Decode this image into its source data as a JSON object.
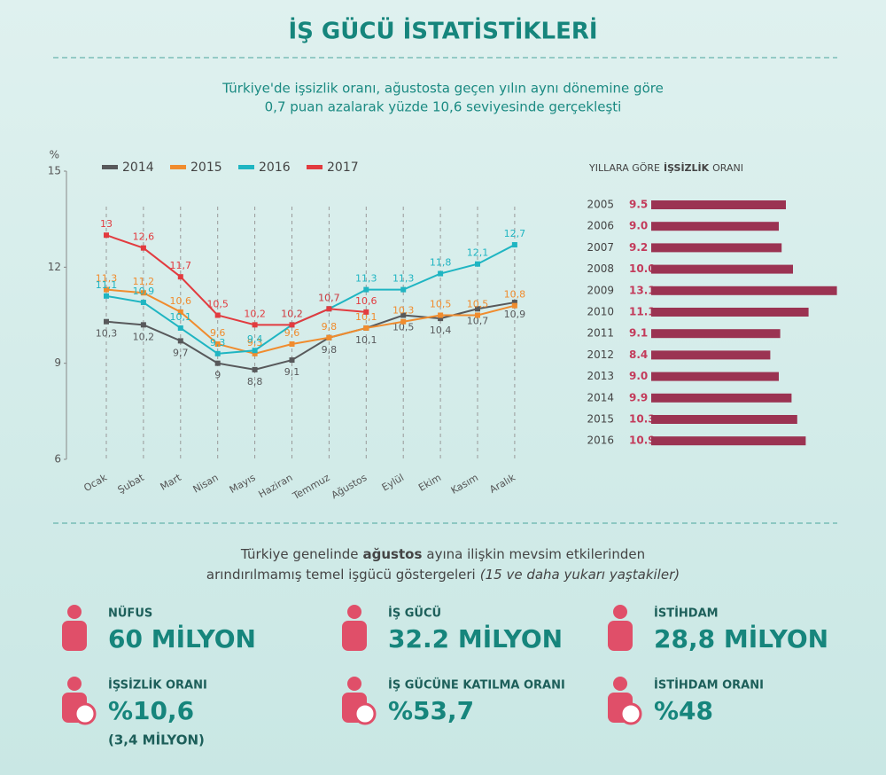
{
  "header": {
    "title": "İŞ GÜCÜ İSTATİSTİKLERİ",
    "subtitle": [
      "Türkiye'de işsizlik oranı, ağustosta geçen yılın aynı dönemine göre",
      "0,7 puan azalarak yüzde 10,6 seviyesinde gerçekleşti"
    ]
  },
  "chart_data": [
    {
      "type": "line",
      "y_label": "%",
      "categories": [
        "Ocak",
        "Şubat",
        "Mart",
        "Nisan",
        "Mayıs",
        "Haziran",
        "Temmuz",
        "Ağustos",
        "Eylül",
        "Ekim",
        "Kasım",
        "Aralık"
      ],
      "ylim": [
        6,
        15
      ],
      "yticks": [
        6,
        9,
        12,
        15
      ],
      "grid": true,
      "series": [
        {
          "name": "2014",
          "color": "#58595b",
          "values": [
            10.3,
            10.2,
            9.7,
            9,
            8.8,
            9.1,
            9.8,
            10.1,
            10.5,
            10.4,
            10.7,
            10.9
          ],
          "value_labels": [
            "10,3",
            "10,2",
            "9,7",
            "9",
            "8,8",
            "9,1",
            "9,8",
            "10,1",
            "10,5",
            "10,4",
            "10,7",
            "10,9"
          ]
        },
        {
          "name": "2015",
          "color": "#f08c2e",
          "values": [
            11.3,
            11.2,
            10.6,
            9.6,
            9.3,
            9.6,
            9.8,
            10.1,
            10.3,
            10.5,
            10.5,
            10.8
          ],
          "value_labels": [
            "11,3",
            "11,2",
            "10,6",
            "9,6",
            "9,3",
            "9,6",
            "9,8",
            "10,1",
            "10,3",
            "10,5",
            "10,5",
            "10,8"
          ]
        },
        {
          "name": "2016",
          "color": "#1fb5c2",
          "values": [
            11.1,
            10.9,
            10.1,
            9.3,
            9.4,
            10.2,
            10.7,
            11.3,
            11.3,
            11.8,
            12.1,
            12.7
          ],
          "value_labels": [
            "11,1",
            "10,9",
            "10,1",
            "9,3",
            "9,4",
            "10,2",
            "10,7",
            "11,3",
            "11,3",
            "11,8",
            "12,1",
            "12,7"
          ]
        },
        {
          "name": "2017",
          "color": "#e23b3f",
          "values": [
            13,
            12.6,
            11.7,
            10.5,
            10.2,
            10.2,
            10.7,
            10.6,
            null,
            null,
            null,
            null
          ],
          "value_labels": [
            "13",
            "12,6",
            "11,7",
            "10,5",
            "10,2",
            "10,2",
            "10,7",
            "10,6",
            null,
            null,
            null,
            null
          ]
        }
      ]
    },
    {
      "type": "hbar",
      "title": [
        "YILLARA GÖRE",
        "İŞSİZLİK",
        "ORANI"
      ],
      "color": "#9b3352",
      "categories": [
        "2005",
        "2006",
        "2007",
        "2008",
        "2009",
        "2010",
        "2011",
        "2012",
        "2013",
        "2014",
        "2015",
        "2016"
      ],
      "values": [
        9.5,
        9.0,
        9.2,
        10.0,
        13.1,
        11.1,
        9.1,
        8.4,
        9.0,
        9.9,
        10.3,
        10.9
      ],
      "value_labels": [
        "9.5",
        "9.0",
        "9.2",
        "10.0",
        "13.1",
        "11.1",
        "9.1",
        "8.4",
        "9.0",
        "9.9",
        "10.3",
        "10.9"
      ]
    }
  ],
  "indicators": {
    "intro": [
      [
        "Türkiye genelinde",
        "ağustos",
        "ayına ilişkin mevsim etkilerinden"
      ],
      [
        "arındırılmamış temel işgücü göstergeleri",
        "(15 ve daha yukarı yaştakiler)"
      ]
    ],
    "items": [
      {
        "label": "NÜFUS",
        "value": "60 MİLYON"
      },
      {
        "label": "İŞ GÜCÜ",
        "value": "32.2 MİLYON"
      },
      {
        "label": "İSTİHDAM",
        "value": "28,8 MİLYON"
      },
      {
        "label": "İŞSİZLİK ORANI",
        "value": "%10,6",
        "note": "(3,4 MİLYON)"
      },
      {
        "label": "İŞ GÜCÜNE KATILMA ORANI",
        "value": "%53,7"
      },
      {
        "label": "İSTİHDAM ORANI",
        "value": "%48"
      }
    ]
  }
}
